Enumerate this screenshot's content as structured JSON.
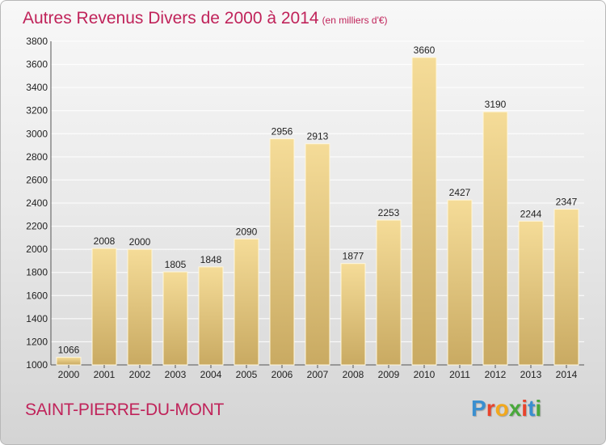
{
  "title": "Autres Revenus Divers de 2000 à 2014",
  "subtitle": "(en milliers d'€)",
  "location": "SAINT-PIERRE-DU-MONT",
  "logo": {
    "letters": [
      "P",
      "r",
      "o",
      "x",
      "i",
      "t",
      "i"
    ],
    "colors": [
      "#3a8fd0",
      "#e8432c",
      "#f2a81d",
      "#49a83b",
      "#e8432c",
      "#3a8fd0",
      "#49a83b"
    ]
  },
  "colors": {
    "bar_top": "#f5dc98",
    "bar_bottom": "#c9aa62",
    "grid": "#ffffff",
    "title": "#c0235a"
  },
  "chart_data": {
    "type": "bar",
    "categories": [
      "2000",
      "2001",
      "2002",
      "2003",
      "2004",
      "2005",
      "2006",
      "2007",
      "2008",
      "2009",
      "2010",
      "2011",
      "2012",
      "2013",
      "2014"
    ],
    "values": [
      1066,
      2008,
      2000,
      1805,
      1848,
      2090,
      2956,
      2913,
      1877,
      2253,
      3660,
      2427,
      3190,
      2244,
      2347
    ],
    "ylim": [
      1000,
      3800
    ],
    "yticks": [
      1000,
      1200,
      1400,
      1600,
      1800,
      2000,
      2200,
      2400,
      2600,
      2800,
      3000,
      3200,
      3400,
      3600,
      3800
    ],
    "grid": true,
    "data_labels": true
  }
}
